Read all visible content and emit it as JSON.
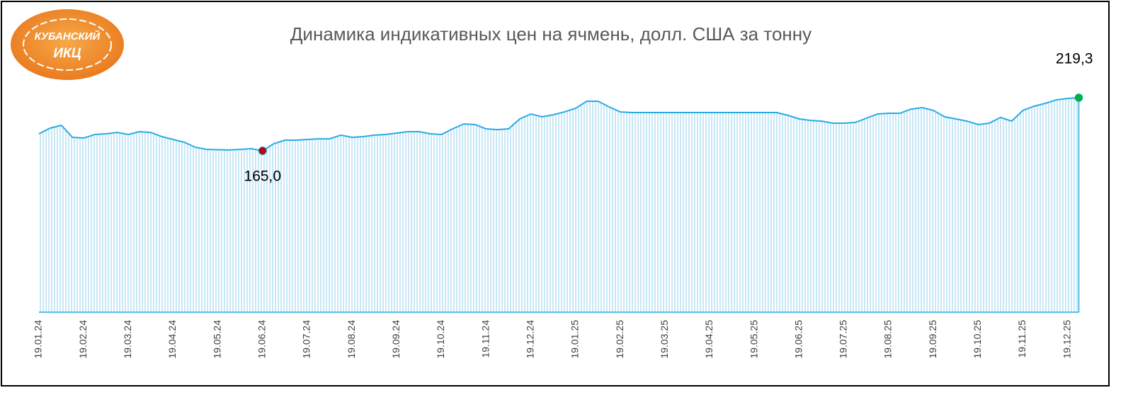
{
  "logo_text": [
    "КУБАНСКИЙ",
    "ИКЦ"
  ],
  "chart_data": {
    "type": "area",
    "title": "Динамика индикативных цен на ячмень, долл. США за тонну",
    "categories": [
      "19.01.24",
      null,
      null,
      null,
      "19.02.24",
      null,
      null,
      null,
      "19.03.24",
      null,
      null,
      null,
      "19.04.24",
      null,
      null,
      null,
      "19.05.24",
      null,
      null,
      null,
      "19.06.24",
      null,
      null,
      null,
      "19.07.24",
      null,
      null,
      null,
      "19.08.24",
      null,
      null,
      null,
      "19.09.24",
      null,
      null,
      null,
      "19.10.24",
      null,
      null,
      null,
      "19.11.24",
      null,
      null,
      null,
      "19.12.24",
      null,
      null,
      null,
      "19.01.25",
      null,
      null,
      null,
      "19.02.25",
      null,
      null,
      null,
      "19.03.25",
      null,
      null,
      null,
      "19.04.25",
      null,
      null,
      null,
      "19.05.25",
      null,
      null,
      null,
      "19.06.25",
      null,
      null,
      null,
      "19.07.25",
      null,
      null,
      null,
      "19.08.25",
      null,
      null,
      null,
      "19.09.25",
      null,
      null,
      null,
      "19.10.25",
      null,
      null,
      null,
      "19.11.25",
      null,
      null,
      null,
      "19.12.25",
      null
    ],
    "series": [
      {
        "color": "#29abe2",
        "values": [
          182.4,
          188.2,
          191.1,
          178.8,
          178.1,
          181.7,
          182.4,
          183.8,
          181.7,
          184.6,
          183.8,
          179.5,
          176.6,
          173.7,
          168.6,
          166.5,
          166.1,
          165.8,
          166.5,
          167.2,
          165.0,
          172.3,
          175.9,
          175.9,
          176.6,
          177.3,
          177.3,
          181.0,
          178.8,
          179.5,
          181.0,
          181.7,
          183.1,
          184.6,
          184.6,
          182.4,
          181.7,
          187.5,
          192.5,
          191.8,
          187.5,
          186.7,
          187.5,
          197.6,
          202.7,
          199.8,
          201.9,
          204.8,
          208.5,
          215.7,
          215.7,
          209.9,
          204.8,
          204.1,
          204.1,
          204.1,
          204.1,
          204.1,
          204.1,
          204.1,
          204.1,
          204.1,
          204.1,
          204.1,
          204.1,
          204.1,
          204.1,
          201.2,
          197.6,
          196.1,
          195.4,
          193.3,
          193.3,
          194.0,
          198.3,
          202.7,
          203.4,
          203.4,
          207.7,
          209.2,
          206.3,
          199.8,
          197.6,
          195.4,
          191.8,
          193.3,
          199.1,
          195.4,
          206.3,
          210.6,
          213.5,
          217.1,
          218.6,
          219.3
        ],
        "value_labels": [
          null,
          null,
          null,
          null,
          null,
          null,
          null,
          null,
          null,
          null,
          null,
          null,
          null,
          null,
          null,
          null,
          null,
          null,
          null,
          null,
          "165,0",
          null,
          null,
          null,
          null,
          null,
          null,
          null,
          null,
          null,
          null,
          null,
          null,
          null,
          null,
          null,
          null,
          null,
          null,
          null,
          null,
          null,
          null,
          null,
          null,
          null,
          null,
          null,
          null,
          null,
          null,
          null,
          null,
          null,
          null,
          null,
          null,
          null,
          null,
          null,
          null,
          null,
          null,
          null,
          null,
          null,
          null,
          null,
          null,
          null,
          null,
          null,
          null,
          null,
          null,
          null,
          null,
          null,
          null,
          null,
          null,
          null,
          null,
          null,
          null,
          null,
          null,
          null,
          null,
          null,
          null,
          null,
          null,
          "219,3"
        ]
      }
    ],
    "ylim": [
      0,
      300
    ]
  }
}
